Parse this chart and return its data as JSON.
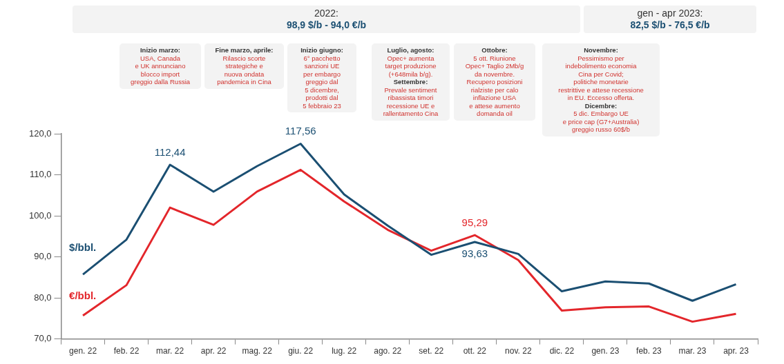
{
  "chart_data": {
    "type": "line",
    "categories": [
      "gen. 22",
      "feb. 22",
      "mar. 22",
      "apr. 22",
      "mag. 22",
      "giu. 22",
      "lug. 22",
      "ago. 22",
      "set. 22",
      "ott. 22",
      "nov. 22",
      "dic. 22",
      "gen. 23",
      "feb. 23",
      "mar. 23",
      "apr. 23"
    ],
    "series": [
      {
        "name": "$/bbl.",
        "color": "#1b4f72",
        "values": [
          85.7,
          94.2,
          112.44,
          105.9,
          112.1,
          117.56,
          105.2,
          97.6,
          90.5,
          93.63,
          90.7,
          81.6,
          84.0,
          83.5,
          79.3,
          83.3
        ],
        "value_labels": [
          null,
          null,
          "112,44",
          null,
          null,
          "117,56",
          null,
          null,
          null,
          "93,63",
          null,
          null,
          null,
          null,
          null,
          null
        ]
      },
      {
        "name": "€/bbl.",
        "color": "#e3262b",
        "values": [
          75.7,
          83.1,
          102.0,
          97.8,
          105.9,
          111.2,
          103.5,
          96.6,
          91.5,
          95.29,
          89.2,
          76.9,
          77.7,
          77.9,
          74.2,
          76.1
        ],
        "value_labels": [
          null,
          null,
          null,
          null,
          null,
          null,
          null,
          null,
          null,
          "95,29",
          null,
          null,
          null,
          null,
          null,
          null
        ]
      }
    ],
    "ylim": [
      70,
      120
    ],
    "yticks": [
      {
        "value": 70,
        "label": "70,0"
      },
      {
        "value": 80,
        "label": "80,0"
      },
      {
        "value": 90,
        "label": "90,0"
      },
      {
        "value": 100,
        "label": "100,0"
      },
      {
        "value": 110,
        "label": "110,0"
      },
      {
        "value": 120,
        "label": "120,0"
      }
    ],
    "grid": false,
    "legend": false,
    "marker": "none",
    "line_style": "solid",
    "annotations": [
      "2022:\n98,9 $/b - 94,0 €/b",
      "gen - apr 2023:\n82,5 $/b - 76,5 €/b",
      "Inizio marzo:\nUSA, Canada\ne UK annunciano\nblocco import\ngreggio dalla Russia",
      "Fine marzo, aprile:\nRilascio scorte\nstrategiche e\nnuova ondata\npandemica in Cina",
      "Inizio giugno:\n6° pacchetto\nsanzioni  UE\nper embargo\ngreggio dal\n5 dicembre,\nprodotti dal\n5 febbraio 23",
      "Luglio, agosto:\nOpec+ aumenta\ntarget produzione\n(+648mila b/g).\nSettembre:\nPrevale sentiment\nribassista  timori\nrecessione UE e\nrallentamento Cina",
      "Ottobre:\n5 ott. Riunione\nOpec+ Taglio 2Mb/g\nda novembre.\nRecupero posizioni\nrialziste per calo\ninflazione USA\ne attese aumento\ndomanda oil",
      "Novembre:\nPessimismo per\nindebolimento economia\nCina per Covid;\npolitiche monetarie\nrestrittive e attese recessione\nin EU. Eccesso offerta.\nDicembre:\n5 dic. Embargo UE\ne price cap (G7+Australia)\ngreggio russo 60$/b"
    ]
  }
}
